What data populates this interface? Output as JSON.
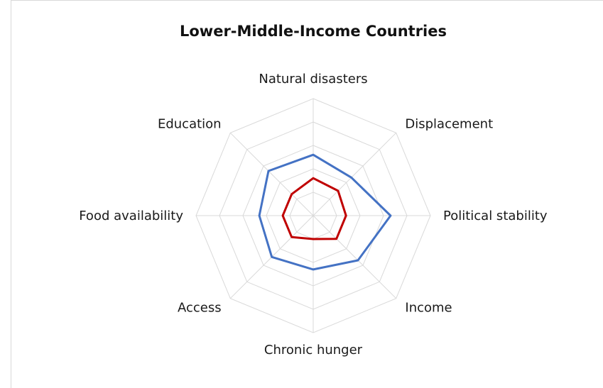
{
  "chart_data": {
    "type": "radar",
    "title": "Lower-Middle-Income Countries",
    "categories": [
      "Natural disasters",
      "Displacement",
      "Political stability",
      "Income",
      "Chronic hunger",
      "Access",
      "Food availability",
      "Education"
    ],
    "rlim": [
      0,
      5
    ],
    "grid": true,
    "series": [
      {
        "color": "#4472c4",
        "values": [
          2.6,
          2.3,
          3.3,
          2.7,
          2.3,
          2.5,
          2.3,
          2.7
        ]
      },
      {
        "color": "#c00000",
        "values": [
          1.6,
          1.5,
          1.4,
          1.4,
          1.0,
          1.3,
          1.3,
          1.3
        ]
      }
    ]
  }
}
